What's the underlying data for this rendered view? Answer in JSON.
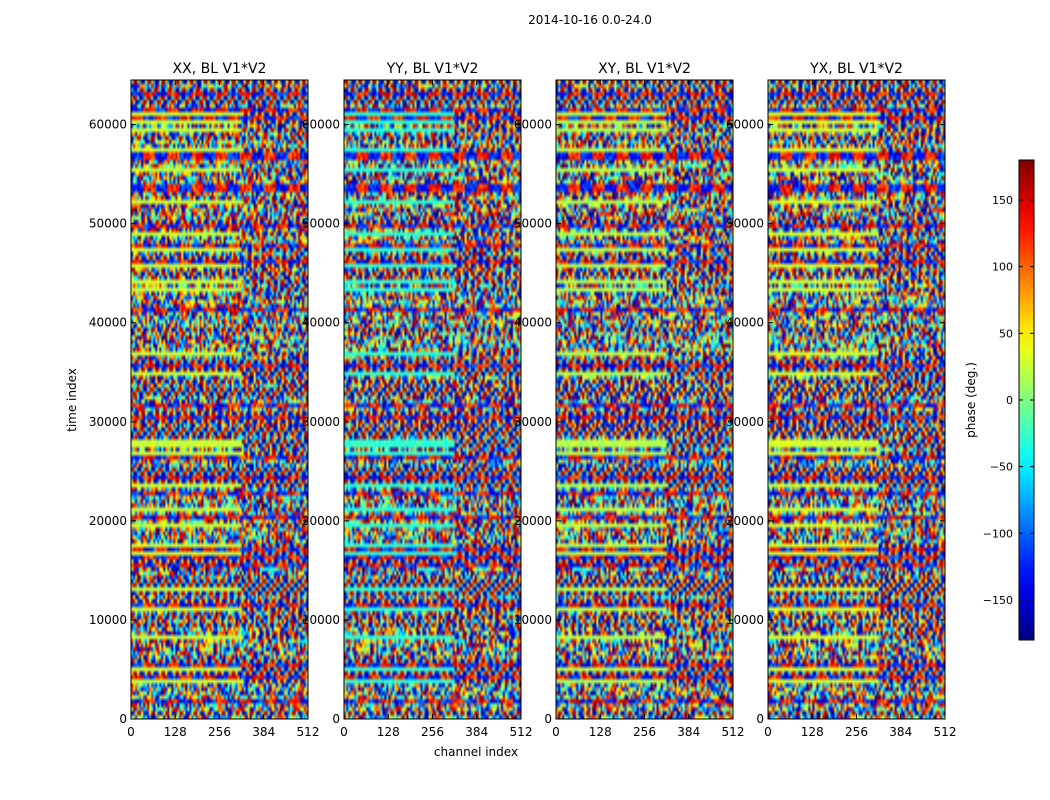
{
  "figure": {
    "suptitle": "2014-10-16 0.0-24.0"
  },
  "chart_data": {
    "type": "heatmap",
    "suptitle": "2014-10-16 0.0-24.0",
    "xlabel": "channel index",
    "ylabel": "time index",
    "xlim": [
      0,
      512
    ],
    "ylim": [
      0,
      64500
    ],
    "xticks": [
      0,
      128,
      256,
      384,
      512
    ],
    "yticks": [
      0,
      10000,
      20000,
      30000,
      40000,
      50000,
      60000
    ],
    "colorbar": {
      "label": "phase (deg.)",
      "range": [
        -180,
        180
      ],
      "ticks": [
        150,
        100,
        50,
        0,
        -50,
        -100,
        -150
      ],
      "tick_labels": [
        "150",
        "100",
        "50",
        "0",
        "−50",
        "−100",
        "−150"
      ],
      "colormap": "jet"
    },
    "panels": [
      {
        "title": "XX, BL V1*V2",
        "polarization": "XX"
      },
      {
        "title": "YY, BL V1*V2",
        "polarization": "YY"
      },
      {
        "title": "XY, BL V1*V2",
        "polarization": "XY"
      },
      {
        "title": "YX, BL V1*V2",
        "polarization": "YX"
      }
    ]
  }
}
